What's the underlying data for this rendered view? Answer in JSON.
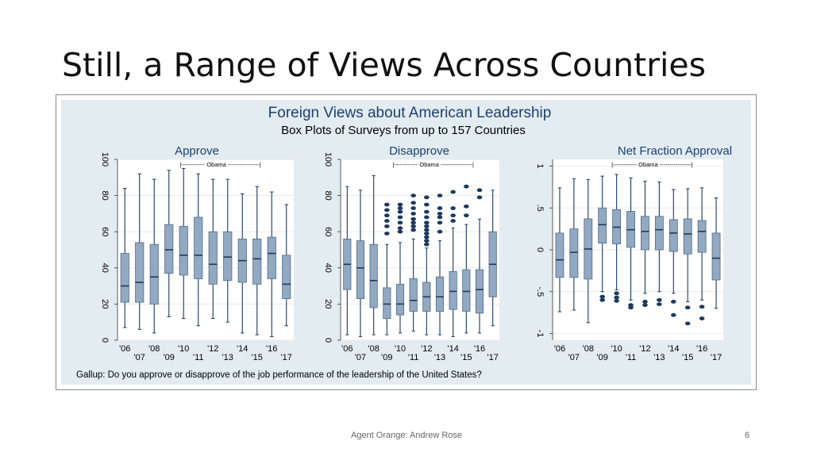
{
  "slide": {
    "title": "Still, a Range of Views Across Countries",
    "footer": "Agent Orange: Andrew Rose",
    "page_number": "6"
  },
  "colors": {
    "panel_bg": "#e2ecf1",
    "plot_bg": "#ffffff",
    "box_fill": "#93a9c1",
    "box_stroke": "#4e6a88",
    "median": "#1c3a5e",
    "whisker": "#1c3a5e",
    "outlier": "#1c3a5e",
    "title_text": "#1f3f6f",
    "text": "#000000",
    "grid": "#e7eaee"
  },
  "chart_data": {
    "title": "Foreign Views about American Leadership",
    "subtitle": "Box Plots of Surveys from up to 157 Countries",
    "note": "Gallup: Do you approve or disapprove of the job performance of the leadership of the United States?",
    "years": [
      "2006",
      "2007",
      "2008",
      "2009",
      "2010",
      "2011",
      "2012",
      "2013",
      "2014",
      "2015",
      "2016",
      "2017"
    ],
    "x_tick_labels_upper": [
      "'06",
      "'08",
      "'10",
      "'12",
      "'14",
      "'16"
    ],
    "x_tick_labels_lower": [
      "'07",
      "'09",
      "'11",
      "'13",
      "'15",
      "'17"
    ],
    "panels": [
      {
        "type": "box",
        "title": "Approve",
        "annotation": "|------------ Obama ----------------|",
        "ylim": [
          0,
          100
        ],
        "yticks": [
          0,
          20,
          40,
          60,
          80,
          100
        ],
        "ytick_labels": [
          "0",
          "20",
          "40",
          "60",
          "80",
          "100"
        ],
        "grid": true,
        "boxes": [
          {
            "year": "2006",
            "min": 7,
            "q1": 21,
            "median": 30,
            "q3": 48,
            "max": 84,
            "outliers": []
          },
          {
            "year": "2007",
            "min": 6,
            "q1": 21,
            "median": 32,
            "q3": 54,
            "max": 92,
            "outliers": []
          },
          {
            "year": "2008",
            "min": 4,
            "q1": 20,
            "median": 35,
            "q3": 53,
            "max": 89,
            "outliers": []
          },
          {
            "year": "2009",
            "min": 13,
            "q1": 37,
            "median": 50,
            "q3": 64,
            "max": 94,
            "outliers": []
          },
          {
            "year": "2010",
            "min": 12,
            "q1": 36,
            "median": 47,
            "q3": 63,
            "max": 95,
            "outliers": []
          },
          {
            "year": "2011",
            "min": 8,
            "q1": 34,
            "median": 47,
            "q3": 68,
            "max": 92,
            "outliers": []
          },
          {
            "year": "2012",
            "min": 12,
            "q1": 31,
            "median": 42,
            "q3": 60,
            "max": 89,
            "outliers": []
          },
          {
            "year": "2013",
            "min": 10,
            "q1": 33,
            "median": 46,
            "q3": 60,
            "max": 89,
            "outliers": []
          },
          {
            "year": "2014",
            "min": 4,
            "q1": 32,
            "median": 44,
            "q3": 56,
            "max": 81,
            "outliers": []
          },
          {
            "year": "2015",
            "min": 3,
            "q1": 31,
            "median": 45,
            "q3": 56,
            "max": 85,
            "outliers": []
          },
          {
            "year": "2016",
            "min": 2,
            "q1": 34,
            "median": 48,
            "q3": 57,
            "max": 82,
            "outliers": []
          },
          {
            "year": "2017",
            "min": 8,
            "q1": 23,
            "median": 31,
            "q3": 47,
            "max": 75,
            "outliers": []
          }
        ]
      },
      {
        "type": "box",
        "title": "Disapprove",
        "annotation": "|------------ Obama ----------------|",
        "ylim": [
          0,
          100
        ],
        "yticks": [
          0,
          20,
          40,
          60,
          80,
          100
        ],
        "ytick_labels": [
          "0",
          "20",
          "40",
          "60",
          "80",
          "100"
        ],
        "grid": true,
        "boxes": [
          {
            "year": "2006",
            "min": 3,
            "q1": 28,
            "median": 42,
            "q3": 56,
            "max": 85,
            "outliers": []
          },
          {
            "year": "2007",
            "min": 2,
            "q1": 23,
            "median": 40,
            "q3": 55,
            "max": 83,
            "outliers": []
          },
          {
            "year": "2008",
            "min": 3,
            "q1": 18,
            "median": 33,
            "q3": 53,
            "max": 91,
            "outliers": []
          },
          {
            "year": "2009",
            "min": 3,
            "q1": 12,
            "median": 20,
            "q3": 29,
            "max": 53,
            "outliers": [
              59,
              63,
              66,
              69,
              72,
              75
            ]
          },
          {
            "year": "2010",
            "min": 4,
            "q1": 14,
            "median": 20,
            "q3": 31,
            "max": 54,
            "outliers": [
              60,
              62,
              65,
              68,
              71,
              73,
              75
            ]
          },
          {
            "year": "2011",
            "min": 5,
            "q1": 16,
            "median": 22,
            "q3": 34,
            "max": 56,
            "outliers": [
              61,
              63,
              65,
              67,
              70,
              73,
              76,
              80
            ]
          },
          {
            "year": "2012",
            "min": 3,
            "q1": 16,
            "median": 24,
            "q3": 32,
            "max": 51,
            "outliers": [
              53,
              55,
              57,
              59,
              61,
              63,
              65,
              68,
              71,
              75,
              79
            ]
          },
          {
            "year": "2013",
            "min": 3,
            "q1": 16,
            "median": 24,
            "q3": 35,
            "max": 55,
            "outliers": [
              60,
              65,
              68,
              70,
              73,
              80
            ]
          },
          {
            "year": "2014",
            "min": 2,
            "q1": 17,
            "median": 27,
            "q3": 38,
            "max": 62,
            "outliers": [
              66,
              69,
              73,
              82
            ]
          },
          {
            "year": "2015",
            "min": 4,
            "q1": 16,
            "median": 27,
            "q3": 39,
            "max": 64,
            "outliers": [
              69,
              74,
              85
            ]
          },
          {
            "year": "2016",
            "min": 4,
            "q1": 15,
            "median": 28,
            "q3": 39,
            "max": 67,
            "outliers": [
              79,
              83
            ]
          },
          {
            "year": "2017",
            "min": 8,
            "q1": 24,
            "median": 42,
            "q3": 60,
            "max": 83,
            "outliers": []
          }
        ]
      },
      {
        "type": "box",
        "title": "Net Fraction Approval",
        "annotation": "|------------ Obama ----------------|",
        "ylim": [
          -1.08,
          1.08
        ],
        "yticks": [
          -1,
          -0.5,
          0,
          0.5,
          1
        ],
        "ytick_labels": [
          "-1",
          "-.5",
          "0",
          ".5",
          "1"
        ],
        "grid": true,
        "boxes": [
          {
            "year": "2006",
            "min": -0.74,
            "q1": -0.33,
            "median": -0.12,
            "q3": 0.2,
            "max": 0.74,
            "outliers": []
          },
          {
            "year": "2007",
            "min": -0.72,
            "q1": -0.33,
            "median": -0.03,
            "q3": 0.25,
            "max": 0.85,
            "outliers": []
          },
          {
            "year": "2008",
            "min": -0.87,
            "q1": -0.35,
            "median": 0.01,
            "q3": 0.37,
            "max": 0.84,
            "outliers": []
          },
          {
            "year": "2009",
            "min": -0.5,
            "q1": 0.08,
            "median": 0.3,
            "q3": 0.5,
            "max": 0.88,
            "outliers": [
              -0.56,
              -0.6
            ]
          },
          {
            "year": "2010",
            "min": -0.48,
            "q1": 0.07,
            "median": 0.27,
            "q3": 0.48,
            "max": 0.9,
            "outliers": [
              -0.52,
              -0.57,
              -0.61
            ]
          },
          {
            "year": "2011",
            "min": -0.6,
            "q1": 0.03,
            "median": 0.24,
            "q3": 0.46,
            "max": 0.86,
            "outliers": [
              -0.66,
              -0.69
            ]
          },
          {
            "year": "2012",
            "min": -0.52,
            "q1": 0.0,
            "median": 0.22,
            "q3": 0.4,
            "max": 0.82,
            "outliers": [
              -0.62,
              -0.66
            ]
          },
          {
            "year": "2013",
            "min": -0.5,
            "q1": 0.0,
            "median": 0.24,
            "q3": 0.4,
            "max": 0.81,
            "outliers": [
              -0.6,
              -0.65
            ]
          },
          {
            "year": "2014",
            "min": -0.52,
            "q1": -0.02,
            "median": 0.2,
            "q3": 0.36,
            "max": 0.72,
            "outliers": [
              -0.62,
              -0.78
            ]
          },
          {
            "year": "2015",
            "min": -0.62,
            "q1": -0.05,
            "median": 0.19,
            "q3": 0.37,
            "max": 0.73,
            "outliers": [
              -0.69,
              -0.88
            ]
          },
          {
            "year": "2016",
            "min": -0.6,
            "q1": -0.03,
            "median": 0.22,
            "q3": 0.35,
            "max": 0.74,
            "outliers": [
              -0.68,
              -0.82
            ]
          },
          {
            "year": "2017",
            "min": -0.7,
            "q1": -0.36,
            "median": -0.1,
            "q3": 0.2,
            "max": 0.62,
            "outliers": []
          }
        ]
      }
    ]
  }
}
